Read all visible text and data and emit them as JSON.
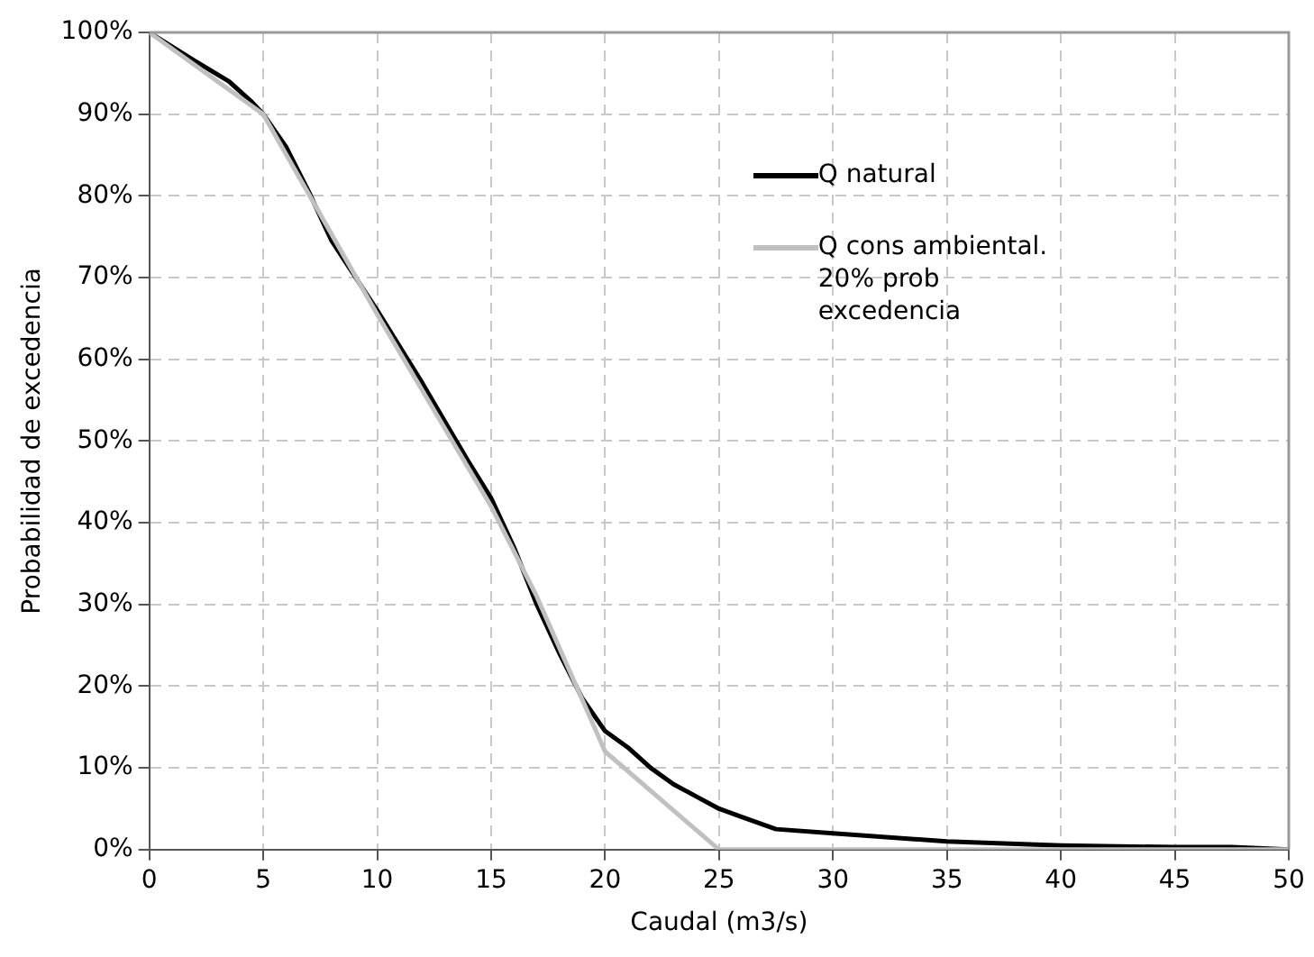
{
  "chart_data": {
    "type": "line",
    "xlabel": "Caudal (m3/s)",
    "ylabel": "Probabilidad de excedencia",
    "xlim": [
      0,
      50
    ],
    "xticks": [
      0,
      5,
      10,
      15,
      20,
      25,
      30,
      35,
      40,
      45,
      50
    ],
    "ylim": [
      0,
      100
    ],
    "yticks": [
      {
        "value": 0,
        "label": "0%"
      },
      {
        "value": 10,
        "label": "10%"
      },
      {
        "value": 20,
        "label": "20%"
      },
      {
        "value": 30,
        "label": "30%"
      },
      {
        "value": 40,
        "label": "40%"
      },
      {
        "value": 50,
        "label": "50%"
      },
      {
        "value": 60,
        "label": "60%"
      },
      {
        "value": 70,
        "label": "70%"
      },
      {
        "value": 80,
        "label": "80%"
      },
      {
        "value": 90,
        "label": "90%"
      },
      {
        "value": 100,
        "label": "100%"
      }
    ],
    "grid": true,
    "legend": "top right",
    "marker": "none",
    "line_style": "solid",
    "series": [
      {
        "name": "Q cons ambiental. 20% prob excedencia",
        "color": "#c0c0c0",
        "x": [
          0,
          5,
          10,
          15,
          17,
          20,
          25,
          50
        ],
        "values": [
          100,
          90,
          65.5,
          42,
          31,
          12,
          0,
          0
        ]
      },
      {
        "name": "Q natural",
        "color": "#000000",
        "x": [
          0,
          2,
          3.5,
          4.5,
          5,
          6,
          7,
          8,
          10,
          12,
          14,
          15,
          16,
          17,
          18,
          19,
          20,
          21,
          22,
          23,
          24,
          25,
          26,
          27.5,
          30,
          35,
          40,
          45,
          47.5,
          50
        ],
        "values": [
          100,
          96.5,
          94,
          91.5,
          90,
          86,
          80.5,
          74.5,
          66,
          57,
          47.5,
          43,
          37,
          30,
          24,
          18.5,
          14.5,
          12.5,
          10,
          8,
          6.5,
          5,
          4,
          2.5,
          2,
          1,
          0.5,
          0.3,
          0.3,
          0
        ]
      }
    ]
  }
}
